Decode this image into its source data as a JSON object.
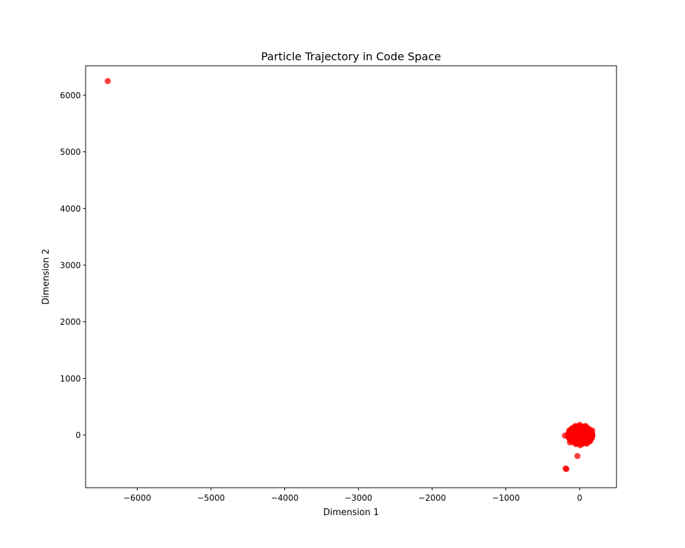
{
  "chart_data": {
    "type": "scatter",
    "title": "Particle Trajectory in Code Space",
    "xlabel": "Dimension 1",
    "ylabel": "Dimension 2",
    "xlim": [
      -6700,
      500
    ],
    "ylim": [
      -930,
      6520
    ],
    "xticks": [
      -6000,
      -5000,
      -4000,
      -3000,
      -2000,
      -1000,
      0
    ],
    "xtick_labels": [
      "−6000",
      "−5000",
      "−4000",
      "−3000",
      "−2000",
      "−1000",
      "0"
    ],
    "yticks": [
      0,
      1000,
      2000,
      3000,
      4000,
      5000,
      6000
    ],
    "ytick_labels": [
      "0",
      "1000",
      "2000",
      "3000",
      "4000",
      "5000",
      "6000"
    ],
    "grid": false,
    "legend": "none",
    "marker_color": "#ff0000",
    "marker_alpha": 0.75,
    "series": [
      {
        "points": [
          {
            "x": -6400,
            "y": 6250
          },
          {
            "x": -190,
            "y": -590
          },
          {
            "x": -180,
            "y": -600
          },
          {
            "x": -30,
            "y": -370
          },
          {
            "x": -200,
            "y": -10
          },
          {
            "x": -150,
            "y": 20
          },
          {
            "x": -140,
            "y": 80
          },
          {
            "x": -120,
            "y": -60
          },
          {
            "x": -100,
            "y": 120
          },
          {
            "x": -90,
            "y": -120
          },
          {
            "x": -80,
            "y": 40
          },
          {
            "x": -60,
            "y": 160
          },
          {
            "x": -50,
            "y": -160
          },
          {
            "x": -40,
            "y": 0
          },
          {
            "x": -20,
            "y": 90
          },
          {
            "x": -10,
            "y": -80
          },
          {
            "x": 0,
            "y": 180
          },
          {
            "x": 10,
            "y": -180
          },
          {
            "x": 20,
            "y": 30
          },
          {
            "x": 30,
            "y": -30
          },
          {
            "x": 40,
            "y": 140
          },
          {
            "x": 50,
            "y": -140
          },
          {
            "x": 60,
            "y": 70
          },
          {
            "x": 70,
            "y": -90
          },
          {
            "x": 80,
            "y": 160
          },
          {
            "x": 90,
            "y": 0
          },
          {
            "x": 100,
            "y": -150
          },
          {
            "x": 110,
            "y": 110
          },
          {
            "x": 120,
            "y": -50
          },
          {
            "x": 130,
            "y": 50
          },
          {
            "x": 140,
            "y": -110
          },
          {
            "x": 150,
            "y": 20
          },
          {
            "x": 160,
            "y": -20
          },
          {
            "x": 170,
            "y": 80
          },
          {
            "x": -130,
            "y": -130
          },
          {
            "x": -70,
            "y": -40
          },
          {
            "x": 0,
            "y": 0
          },
          {
            "x": 60,
            "y": 10
          },
          {
            "x": -30,
            "y": 60
          },
          {
            "x": 30,
            "y": 100
          }
        ]
      }
    ]
  }
}
